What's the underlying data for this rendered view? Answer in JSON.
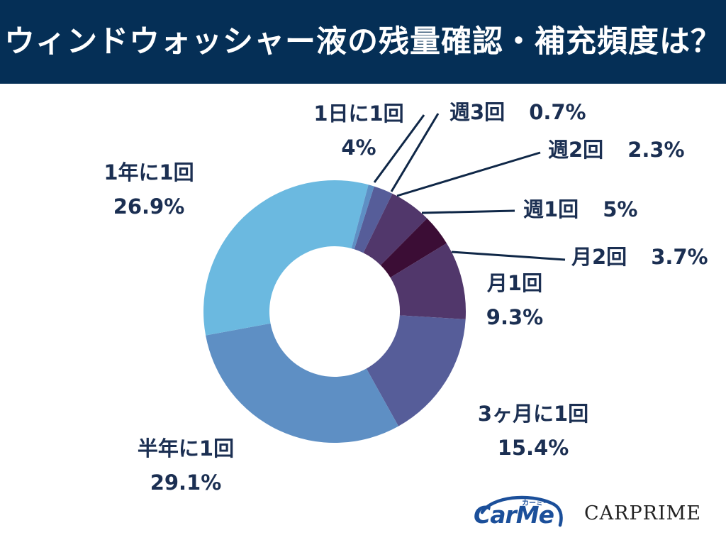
{
  "title": "ウィンドウォッシャー液の残量確認・補充頻度は？",
  "chart_data": {
    "type": "pie",
    "donut": true,
    "start": "12 o'clock",
    "direction": "clockwise",
    "slices": [
      {
        "label": "1日に1回",
        "value_text": "4%",
        "value": 4.0,
        "color": "#6bb9e0"
      },
      {
        "label": "週3回",
        "value_text": "0.7%",
        "value": 0.7,
        "color": "#5e8fc4"
      },
      {
        "label": "週2回",
        "value_text": "2.3%",
        "value": 2.3,
        "color": "#565d99"
      },
      {
        "label": "週1回",
        "value_text": "5%",
        "value": 5.0,
        "color": "#51376b"
      },
      {
        "label": "月2回",
        "value_text": "3.7%",
        "value": 3.7,
        "color": "#3b0d35"
      },
      {
        "label": "月1回",
        "value_text": "9.3%",
        "value": 9.3,
        "color": "#51376b"
      },
      {
        "label": "3ヶ月に1回",
        "value_text": "15.4%",
        "value": 15.4,
        "color": "#565d99"
      },
      {
        "label": "半年に1回",
        "value_text": "29.1%",
        "value": 29.1,
        "color": "#5e8fc4"
      },
      {
        "label": "1年に1回",
        "value_text": "26.9%",
        "value": 26.9,
        "color": "#6bb9e0"
      }
    ]
  },
  "brand": {
    "carme": "CarMe",
    "carme_kana": "カーミー",
    "carprime": "CARPRIME"
  }
}
